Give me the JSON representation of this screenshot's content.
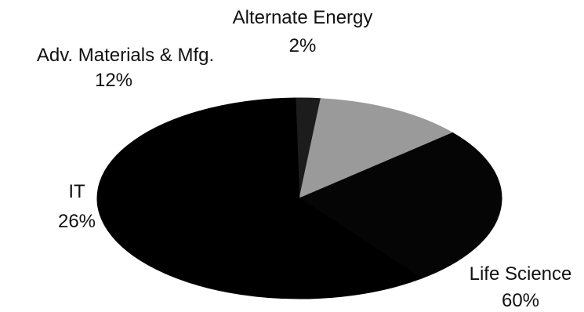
{
  "chart_data": {
    "type": "pie",
    "title": "",
    "slices": [
      {
        "label": "Alternate Energy",
        "percent_label": "2%",
        "value": 2,
        "color": "#1c1c1c"
      },
      {
        "label": "Adv. Materials & Mfg.",
        "percent_label": "12%",
        "value": 12,
        "color": "#9a9a9a"
      },
      {
        "label": "IT",
        "percent_label": "26%",
        "value": 26,
        "color": "#050505"
      },
      {
        "label": "Life Science",
        "percent_label": "60%",
        "value": 60,
        "color": "#000000"
      }
    ],
    "style": "3d-tilted",
    "legend": "none"
  }
}
